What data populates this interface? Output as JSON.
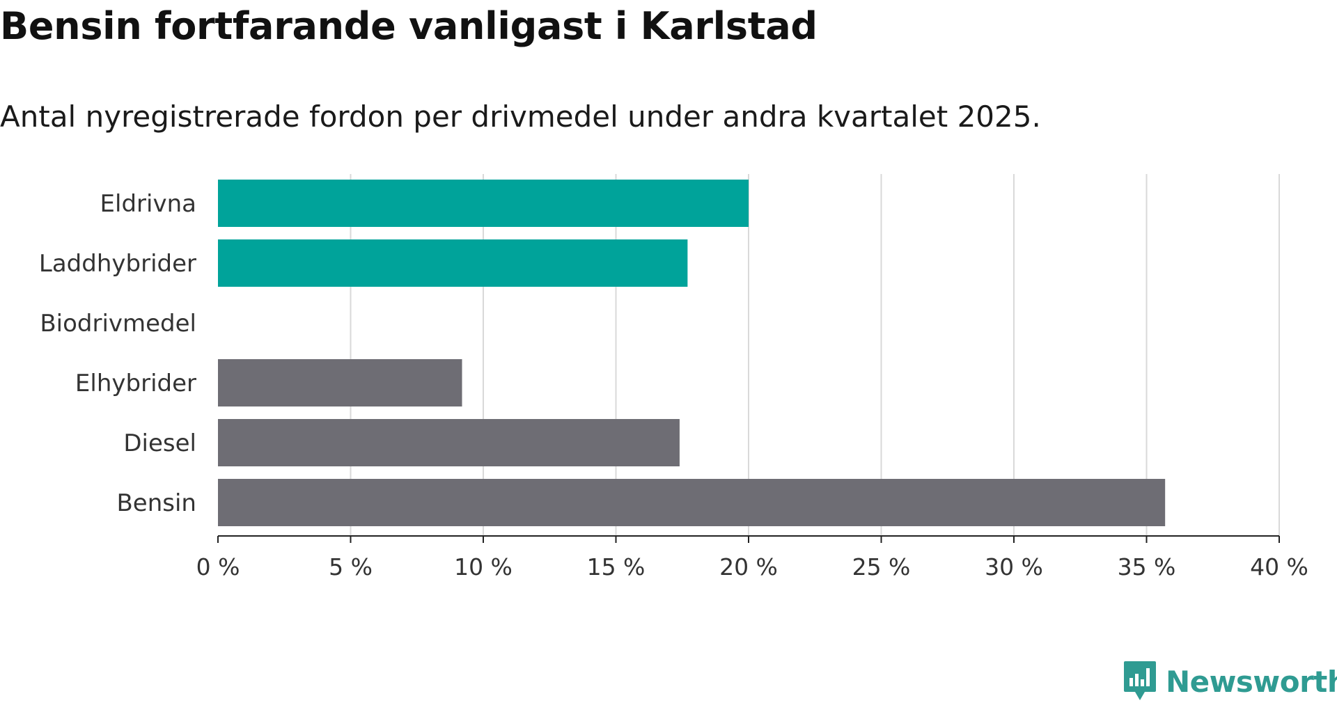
{
  "title": "Bensin fortfarande vanligast i Karlstad",
  "subtitle": "Antal nyregistrerade fordon per drivmedel under andra kvartalet 2025.",
  "brand": "Newsworthy",
  "colors": {
    "highlight": "#00a39a",
    "base": "#6e6d74",
    "grid": "#d9d9d9",
    "axis": "#222222",
    "brand": "#2f9b92"
  },
  "chart_data": {
    "type": "bar",
    "orientation": "horizontal",
    "categories": [
      "Eldrivna",
      "Laddhybrider",
      "Biodrivmedel",
      "Elhybrider",
      "Diesel",
      "Bensin"
    ],
    "values": [
      20.0,
      17.7,
      0,
      9.2,
      17.4,
      35.7
    ],
    "bar_colors": [
      "#00a39a",
      "#00a39a",
      "#00a39a",
      "#6e6d74",
      "#6e6d74",
      "#6e6d74"
    ],
    "xlim": [
      0,
      40
    ],
    "xticks": [
      0,
      5,
      10,
      15,
      20,
      25,
      30,
      35,
      40
    ],
    "xtick_labels": [
      "0 %",
      "5 %",
      "10 %",
      "15 %",
      "20 %",
      "25 %",
      "30 %",
      "35 %",
      "40 %"
    ],
    "grid": true
  }
}
